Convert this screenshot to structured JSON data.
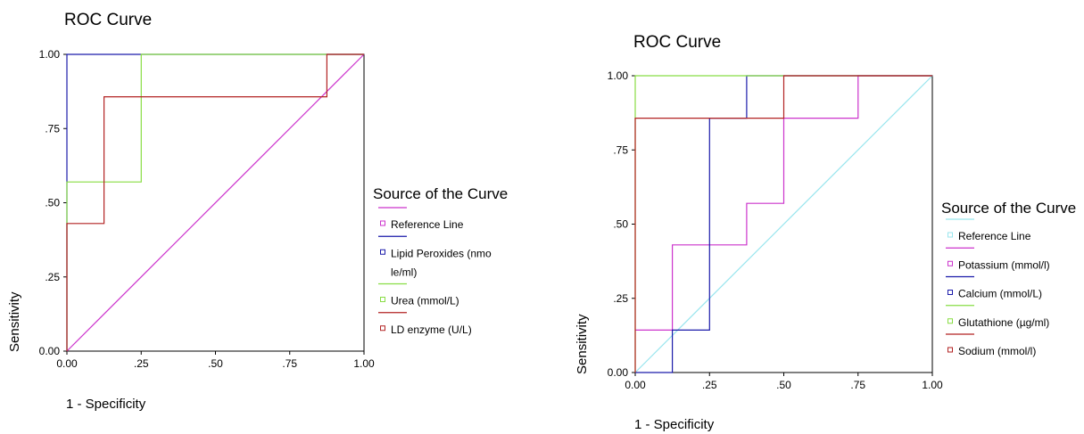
{
  "chart_data": [
    {
      "type": "line",
      "title": "ROC Curve",
      "xlabel": "1 - Specificity",
      "ylabel": "Sensitivity",
      "xlim": [
        0,
        1
      ],
      "ylim": [
        0,
        1
      ],
      "xticks": [
        "0.00",
        ".25",
        ".50",
        ".75",
        "1.00"
      ],
      "yticks": [
        "0.00",
        ".25",
        ".50",
        ".75",
        "1.00"
      ],
      "grid": false,
      "legend_title": "Source of the Curve",
      "legend_position": "right",
      "series": [
        {
          "name": "Reference Line",
          "color": "#cc33cc",
          "x": [
            0,
            1
          ],
          "y": [
            0,
            1
          ]
        },
        {
          "name": "Lipid Peroxides (nmole/ml)",
          "legend_lines": [
            "Lipid Peroxides (nmo",
            "le/ml)"
          ],
          "color": "#1a1aaa",
          "x": [
            0,
            0,
            1
          ],
          "y": [
            0,
            1,
            1
          ]
        },
        {
          "name": "Urea (mmol/L)",
          "color": "#88dd44",
          "x": [
            0,
            0,
            0.25,
            0.25,
            1
          ],
          "y": [
            0,
            0.57,
            0.57,
            1,
            1
          ]
        },
        {
          "name": "LD enzyme (U/L)",
          "color": "#b22222",
          "x": [
            0,
            0,
            0.125,
            0.125,
            0.875,
            0.875,
            1
          ],
          "y": [
            0,
            0.43,
            0.43,
            0.857,
            0.857,
            1,
            1
          ]
        }
      ]
    },
    {
      "type": "line",
      "title": "ROC Curve",
      "xlabel": "1 - Specificity",
      "ylabel": "Sensitivity",
      "xlim": [
        0,
        1
      ],
      "ylim": [
        0,
        1
      ],
      "xticks": [
        "0.00",
        ".25",
        ".50",
        ".75",
        "1.00"
      ],
      "yticks": [
        "0.00",
        ".25",
        ".50",
        ".75",
        "1.00"
      ],
      "grid": false,
      "legend_title": "Source of the Curve",
      "legend_position": "right",
      "series": [
        {
          "name": "Reference Line",
          "color": "#99e6ee",
          "x": [
            0,
            1
          ],
          "y": [
            0,
            1
          ]
        },
        {
          "name": "Potassium (mmol/l)",
          "color": "#cc33cc",
          "x": [
            0,
            0.125,
            0.125,
            0.375,
            0.375,
            0.5,
            0.5,
            0.75,
            0.75,
            1
          ],
          "y": [
            0.143,
            0.143,
            0.43,
            0.43,
            0.57,
            0.57,
            0.857,
            0.857,
            1,
            1
          ]
        },
        {
          "name": "Calcium (mmol/L)",
          "color": "#1a1aaa",
          "x": [
            0,
            0.125,
            0.125,
            0.25,
            0.25,
            0.375,
            0.375,
            1
          ],
          "y": [
            0,
            0,
            0.143,
            0.143,
            0.857,
            0.857,
            1,
            1
          ]
        },
        {
          "name": "Glutathione (µg/ml)",
          "color": "#88dd44",
          "x": [
            0,
            0,
            1
          ],
          "y": [
            0,
            1,
            1
          ]
        },
        {
          "name": "Sodium (mmol/l)",
          "color": "#b22222",
          "x": [
            0,
            0,
            0.5,
            0.5,
            1
          ],
          "y": [
            0,
            0.857,
            0.857,
            1,
            1
          ]
        }
      ]
    }
  ]
}
